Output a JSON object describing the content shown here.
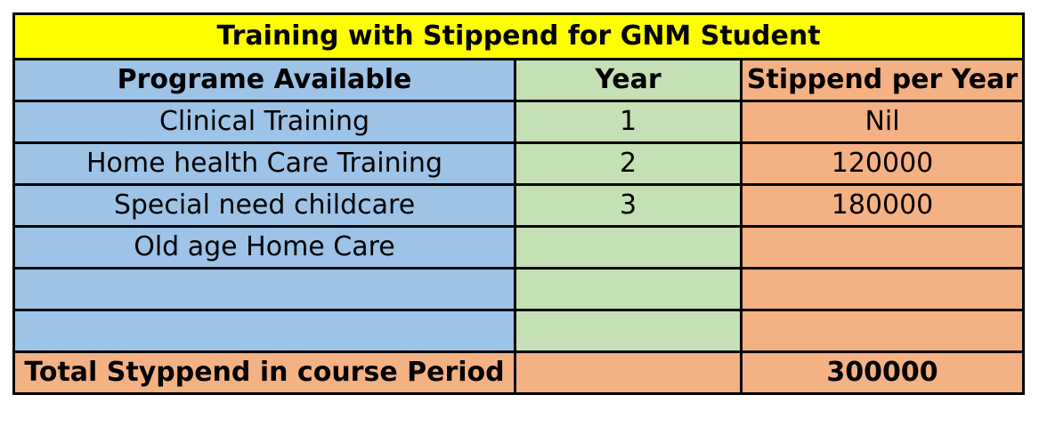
{
  "table": {
    "title": "Training with Stippend  for GNM Student",
    "headers": [
      "Programe Available",
      "Year",
      "Stippend per Year"
    ],
    "rows": [
      {
        "program": "Clinical Training",
        "year": "1",
        "stipend": "Nil"
      },
      {
        "program": "Home health Care Training",
        "year": "2",
        "stipend": "120000"
      },
      {
        "program": "Special need childcare",
        "year": "3",
        "stipend": "180000"
      },
      {
        "program": "Old age Home Care",
        "year": "",
        "stipend": ""
      },
      {
        "program": "",
        "year": "",
        "stipend": ""
      },
      {
        "program": "",
        "year": "",
        "stipend": ""
      }
    ],
    "total": {
      "label": "Total Styppend in course Period",
      "year": "",
      "value": "300000"
    }
  },
  "colors": {
    "title_bg": "#ffff00",
    "program_col": "#9dc3e6",
    "year_col": "#c5e0b4",
    "stipend_col": "#f4b183",
    "border": "#000000"
  }
}
